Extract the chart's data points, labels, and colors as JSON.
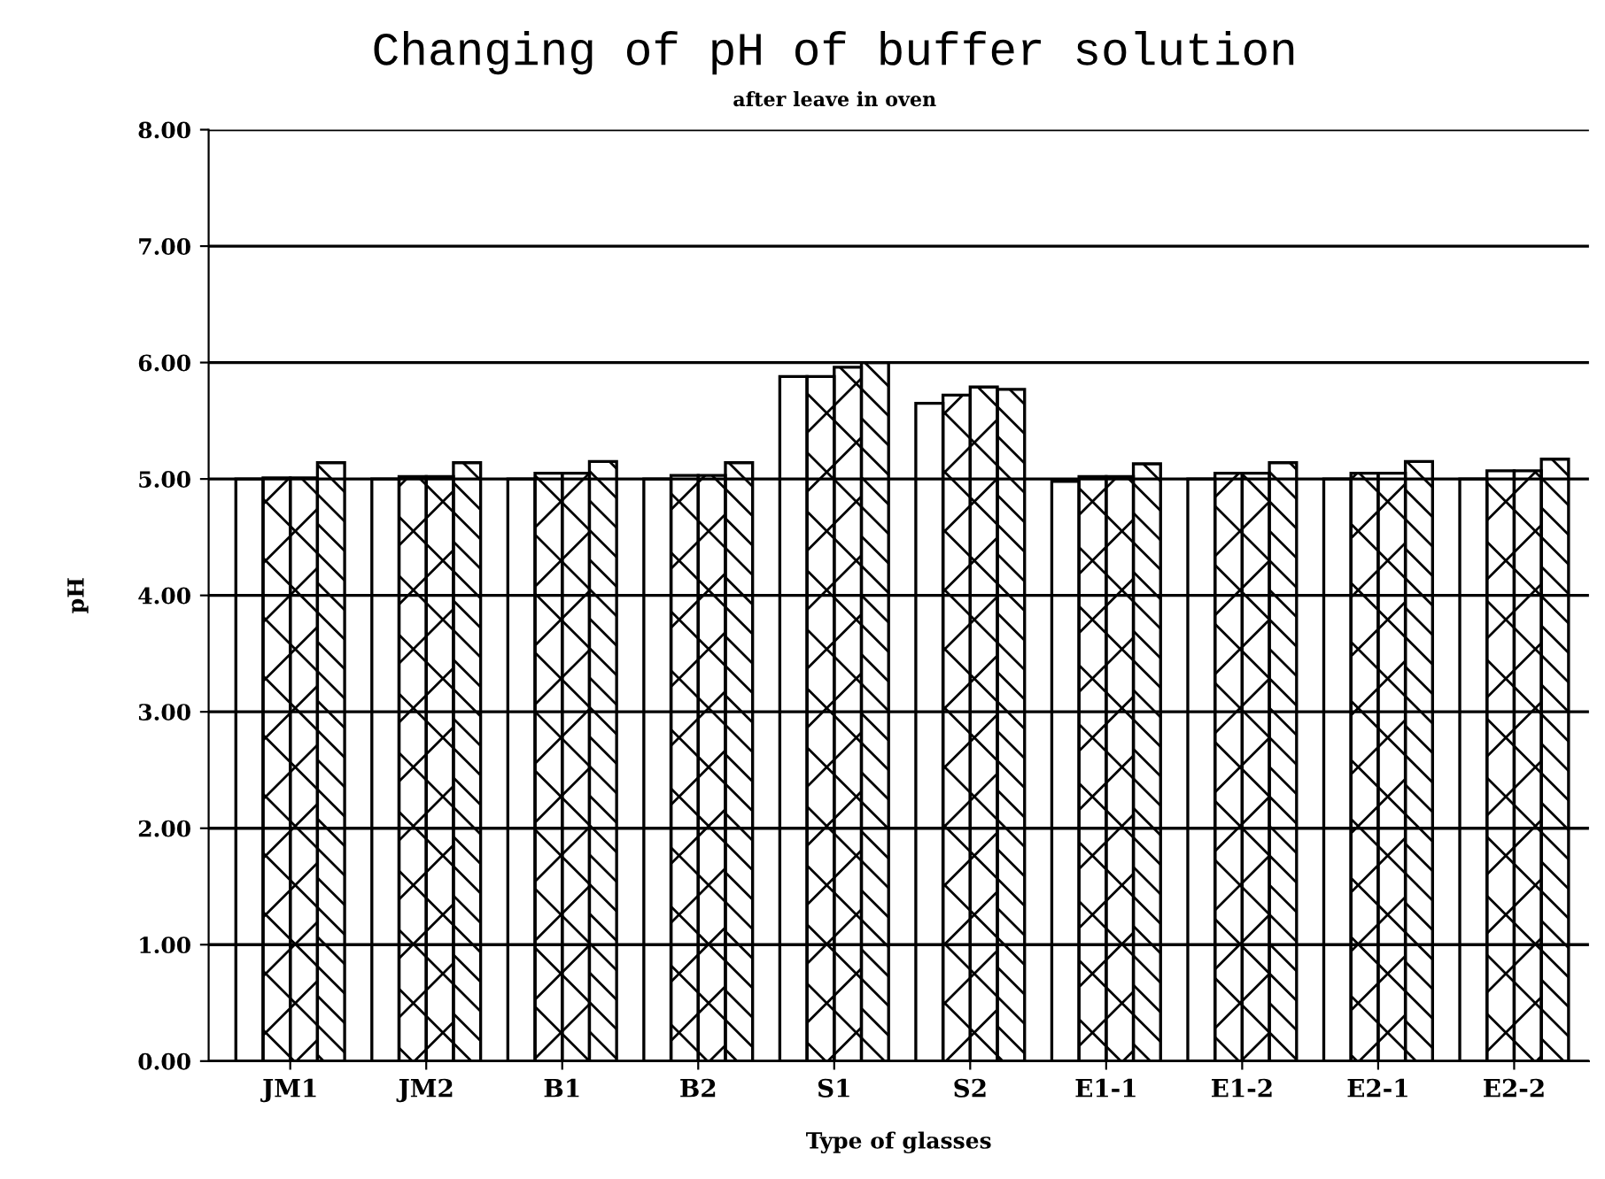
{
  "chart_data": {
    "type": "bar",
    "title": "Changing of pH of buffer solution",
    "subtitle": "after leave in oven",
    "xlabel": "Type of glasses",
    "ylabel": "pH",
    "categories": [
      "JM1",
      "JM2",
      "B1",
      "B2",
      "S1",
      "S2",
      "E1-1",
      "E1-2",
      "E2-1",
      "E2-2"
    ],
    "series": [
      {
        "color": "#000000",
        "values": [
          5.0,
          5.0,
          5.0,
          5.0,
          5.88,
          5.65,
          4.98,
          5.0,
          5.0,
          5.0
        ]
      },
      {
        "color": "#000000",
        "values": [
          5.01,
          5.02,
          5.05,
          5.03,
          5.88,
          5.72,
          5.02,
          5.05,
          5.05,
          5.07
        ]
      },
      {
        "color": "#000000",
        "values": [
          5.01,
          5.02,
          5.05,
          5.03,
          5.96,
          5.79,
          5.02,
          5.05,
          5.05,
          5.07
        ]
      },
      {
        "color": "#000000",
        "values": [
          5.14,
          5.14,
          5.15,
          5.14,
          6.0,
          5.77,
          5.13,
          5.14,
          5.15,
          5.17
        ]
      }
    ],
    "ylim": [
      0,
      8
    ],
    "yticks": [
      {
        "value": 0,
        "label": "0.00"
      },
      {
        "value": 1,
        "label": "1.00"
      },
      {
        "value": 2,
        "label": "2.00"
      },
      {
        "value": 3,
        "label": "3.00"
      },
      {
        "value": 4,
        "label": "4.00"
      },
      {
        "value": 5,
        "label": "5.00"
      },
      {
        "value": 6,
        "label": "6.00"
      },
      {
        "value": 7,
        "label": "7.00"
      },
      {
        "value": 8,
        "label": "8.00"
      }
    ],
    "grid": "y",
    "legend": false
  }
}
